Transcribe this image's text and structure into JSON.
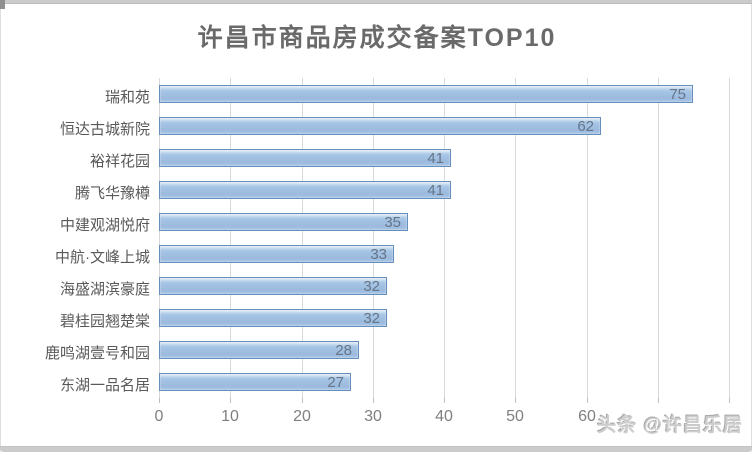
{
  "chart_data": {
    "type": "bar",
    "orientation": "horizontal",
    "title": "许昌市商品房成交备案TOP10",
    "categories": [
      "瑞和苑",
      "恒达古城新院",
      "裕祥花园",
      "腾飞华豫樽",
      "中建观湖悦府",
      "中航·文峰上城",
      "海盛湖滨豪庭",
      "碧桂园翘楚棠",
      "鹿鸣湖壹号和园",
      "东湖一品名居"
    ],
    "values": [
      75,
      62,
      41,
      41,
      35,
      33,
      32,
      32,
      28,
      27
    ],
    "xlabel": "",
    "ylabel": "",
    "xlim": [
      0,
      80
    ],
    "x_tick_labels": [
      "0",
      "10",
      "20",
      "30",
      "40",
      "50",
      "60"
    ],
    "gridline_ticks": [
      0,
      10,
      20,
      30,
      40,
      50,
      60,
      70,
      80
    ],
    "grid": true,
    "legend_position": "none",
    "data_labels": "inside-end"
  },
  "watermark": {
    "text": "头条 @许昌乐居"
  },
  "colors": {
    "bar_fill_top": "#c6daf0",
    "bar_fill": "#a5c3e4",
    "bar_fill_bottom": "#9cbadd",
    "bar_border": "#6590be",
    "grid_line": "#d9d9d9",
    "tick_mark": "#bfbfbf",
    "title_text": "#6a6a6a",
    "category_text": "#595959",
    "value_label_text": "#64758a",
    "axis_tick_text": "#7f7f7f",
    "watermark_text": "#cdcdcd",
    "frame_edge": "#cbcbcb"
  }
}
